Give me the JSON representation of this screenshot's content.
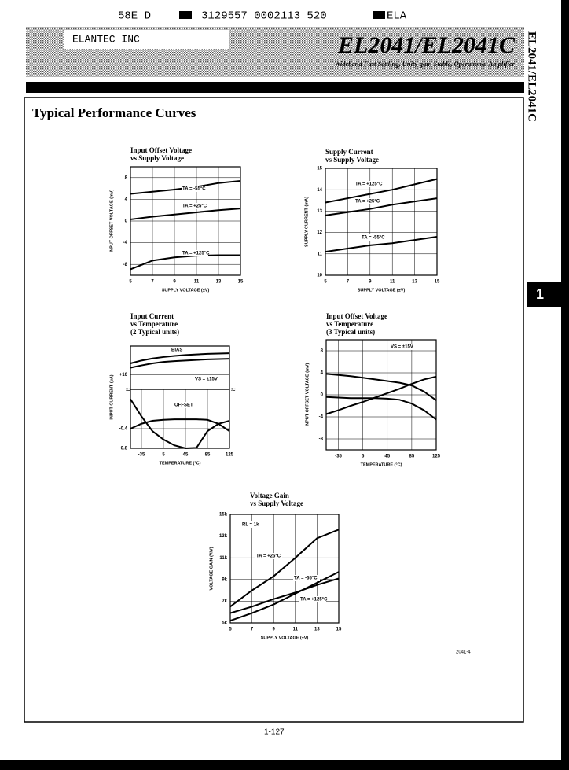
{
  "header": {
    "code_line": [
      "58E D",
      "3129557 0002113 520",
      "ELA"
    ],
    "company": "ELANTEC INC",
    "part": "EL2041/EL2041C",
    "description": "Wideband Fast Settling, Unity-gain Stable, Operational Amplifier"
  },
  "side_label": "EL2041/EL2041C",
  "tab": "1",
  "section_title": "Typical Performance Curves",
  "chart_data": [
    {
      "type": "line",
      "title": "Input Offset Voltage",
      "subtitle": [
        "vs Supply Voltage"
      ],
      "x_label": "SUPPLY VOLTAGE (±V)",
      "y_label": "INPUT OFFSET VOLTAGE (mV)",
      "x": [
        5,
        7,
        9,
        11,
        13,
        15
      ],
      "xlim": [
        5,
        15
      ],
      "xticks": [
        5,
        7,
        9,
        11,
        13,
        15
      ],
      "ylim": [
        -10,
        10
      ],
      "yticks": [
        -8,
        -4,
        0,
        4,
        8
      ],
      "grid": true,
      "series": [
        {
          "name": "TA = -55°C",
          "color": "#000",
          "values": [
            5.0,
            5.4,
            5.8,
            6.3,
            7.0,
            7.4
          ]
        },
        {
          "name": "TA = +25°C",
          "color": "#000",
          "values": [
            0.3,
            0.8,
            1.2,
            1.6,
            2.0,
            2.3
          ]
        },
        {
          "name": "TA = +125°C",
          "color": "#000",
          "values": [
            -8.9,
            -7.3,
            -6.7,
            -6.4,
            -6.3,
            -6.3
          ]
        }
      ]
    },
    {
      "type": "line",
      "title": "Supply Current",
      "subtitle": [
        "vs Supply Voltage"
      ],
      "x_label": "SUPPLY VOLTAGE (±V)",
      "y_label": "SUPPLY CURRENT (mA)",
      "x": [
        5,
        7,
        9,
        11,
        13,
        15
      ],
      "xlim": [
        5,
        15
      ],
      "xticks": [
        5,
        7,
        9,
        11,
        13,
        15
      ],
      "ylim": [
        10,
        15
      ],
      "yticks": [
        10,
        11,
        12,
        13,
        14,
        15
      ],
      "grid": true,
      "series": [
        {
          "name": "TA = +125°C",
          "color": "#000",
          "values": [
            13.4,
            13.6,
            13.8,
            14.0,
            14.25,
            14.5
          ]
        },
        {
          "name": "TA = +25°C",
          "color": "#000",
          "values": [
            12.8,
            12.95,
            13.1,
            13.3,
            13.45,
            13.6
          ]
        },
        {
          "name": "TA = -55°C",
          "color": "#000",
          "values": [
            11.1,
            11.25,
            11.4,
            11.5,
            11.65,
            11.8
          ]
        }
      ]
    },
    {
      "type": "line",
      "title": "Input Current",
      "subtitle": [
        "vs Temperature",
        "(2 Typical units)"
      ],
      "y_label": "INPUT CURRENT (µA)",
      "x": [
        -55,
        -35,
        -15,
        5,
        25,
        45,
        65,
        85,
        105,
        125
      ],
      "xlim": [
        -55,
        125
      ],
      "ylim": [
        5,
        20
      ],
      "yticks": [
        {
          "value": 10,
          "label": "+10"
        }
      ],
      "grid": true,
      "annotations": [
        "BIAS",
        "VS = ±15V"
      ],
      "series": [
        {
          "color": "#000",
          "values": [
            12.5,
            13.3,
            14,
            14.5,
            14.8,
            15,
            15.2,
            15.4,
            15.5,
            15.6
          ]
        },
        {
          "color": "#000",
          "values": [
            14,
            15,
            15.7,
            16.2,
            16.6,
            16.9,
            17.1,
            17.3,
            17.4,
            17.5
          ]
        }
      ]
    },
    {
      "type": "line",
      "x_label": "TEMPERATURE (°C)",
      "x": [
        -55,
        -35,
        -15,
        5,
        25,
        45,
        65,
        85,
        105,
        125
      ],
      "xlim": [
        -55,
        125
      ],
      "xticks": [
        -35,
        5,
        45,
        85,
        125
      ],
      "ylim": [
        -0.8,
        0.4
      ],
      "yticks": [
        -0.8,
        -0.4
      ],
      "grid": true,
      "annotations": [
        "OFFSET"
      ],
      "series": [
        {
          "color": "#000",
          "values": [
            0.2,
            -0.15,
            -0.45,
            -0.62,
            -0.74,
            -0.8,
            -0.79,
            -0.45,
            -0.3,
            -0.24
          ]
        },
        {
          "color": "#000",
          "values": [
            -0.4,
            -0.3,
            -0.24,
            -0.22,
            -0.21,
            -0.21,
            -0.21,
            -0.22,
            -0.3,
            -0.45
          ]
        }
      ]
    },
    {
      "type": "line",
      "title": "Input Offset Voltage",
      "subtitle": [
        "vs Temperature",
        "(3 Typical units)"
      ],
      "x_label": "TEMPERATURE (°C)",
      "y_label": "INPUT OFFSET VOLTAGE (mV)",
      "x": [
        -55,
        -35,
        -15,
        5,
        25,
        45,
        65,
        85,
        105,
        125
      ],
      "xlim": [
        -55,
        125
      ],
      "xticks": [
        -35,
        5,
        45,
        85,
        125
      ],
      "ylim": [
        -10,
        10
      ],
      "yticks": [
        -8,
        -4,
        0,
        4,
        8
      ],
      "grid": true,
      "annotations": [
        "VS = ±15V"
      ],
      "series": [
        {
          "color": "#000",
          "values": [
            3.8,
            3.6,
            3.4,
            3.1,
            2.8,
            2.5,
            2.2,
            1.7,
            0.6,
            -1.0
          ]
        },
        {
          "color": "#000",
          "values": [
            -3.5,
            -2.8,
            -2.0,
            -1.3,
            -0.5,
            0.3,
            1.1,
            2.0,
            2.8,
            3.3
          ]
        },
        {
          "color": "#000",
          "values": [
            -0.4,
            -0.5,
            -0.6,
            -0.6,
            -0.6,
            -0.7,
            -0.9,
            -1.6,
            -2.8,
            -4.5
          ]
        }
      ]
    },
    {
      "type": "line",
      "title": "Voltage Gain",
      "subtitle": [
        "vs Supply Voltage"
      ],
      "x_label": "SUPPLY VOLTAGE (±V)",
      "y_label": "VOLTAGE GAIN (V/V)",
      "x": [
        5,
        7,
        9,
        11,
        13,
        15
      ],
      "xlim": [
        5,
        15
      ],
      "xticks": [
        5,
        7,
        9,
        11,
        13,
        15
      ],
      "ylim": [
        5000,
        15000
      ],
      "yticks": [
        {
          "value": 5000,
          "label": "5k"
        },
        {
          "value": 7000,
          "label": "7k"
        },
        {
          "value": 9000,
          "label": "9k"
        },
        {
          "value": 11000,
          "label": "11k"
        },
        {
          "value": 13000,
          "label": "13k"
        },
        {
          "value": 15000,
          "label": "15k"
        }
      ],
      "grid": true,
      "annotations": [
        "RL = 1k"
      ],
      "series": [
        {
          "name": "TA = +25°C",
          "color": "#000",
          "values": [
            6500,
            8000,
            9300,
            11000,
            12800,
            13600
          ]
        },
        {
          "name": "TA = -55°C",
          "color": "#000",
          "values": [
            5200,
            5900,
            6700,
            7700,
            8700,
            9700
          ]
        },
        {
          "name": "TA = +125°C",
          "color": "#000",
          "values": [
            5900,
            6500,
            7200,
            7800,
            8500,
            9100
          ]
        }
      ]
    }
  ],
  "figure_id": "2041-4",
  "page_number": "1-127"
}
